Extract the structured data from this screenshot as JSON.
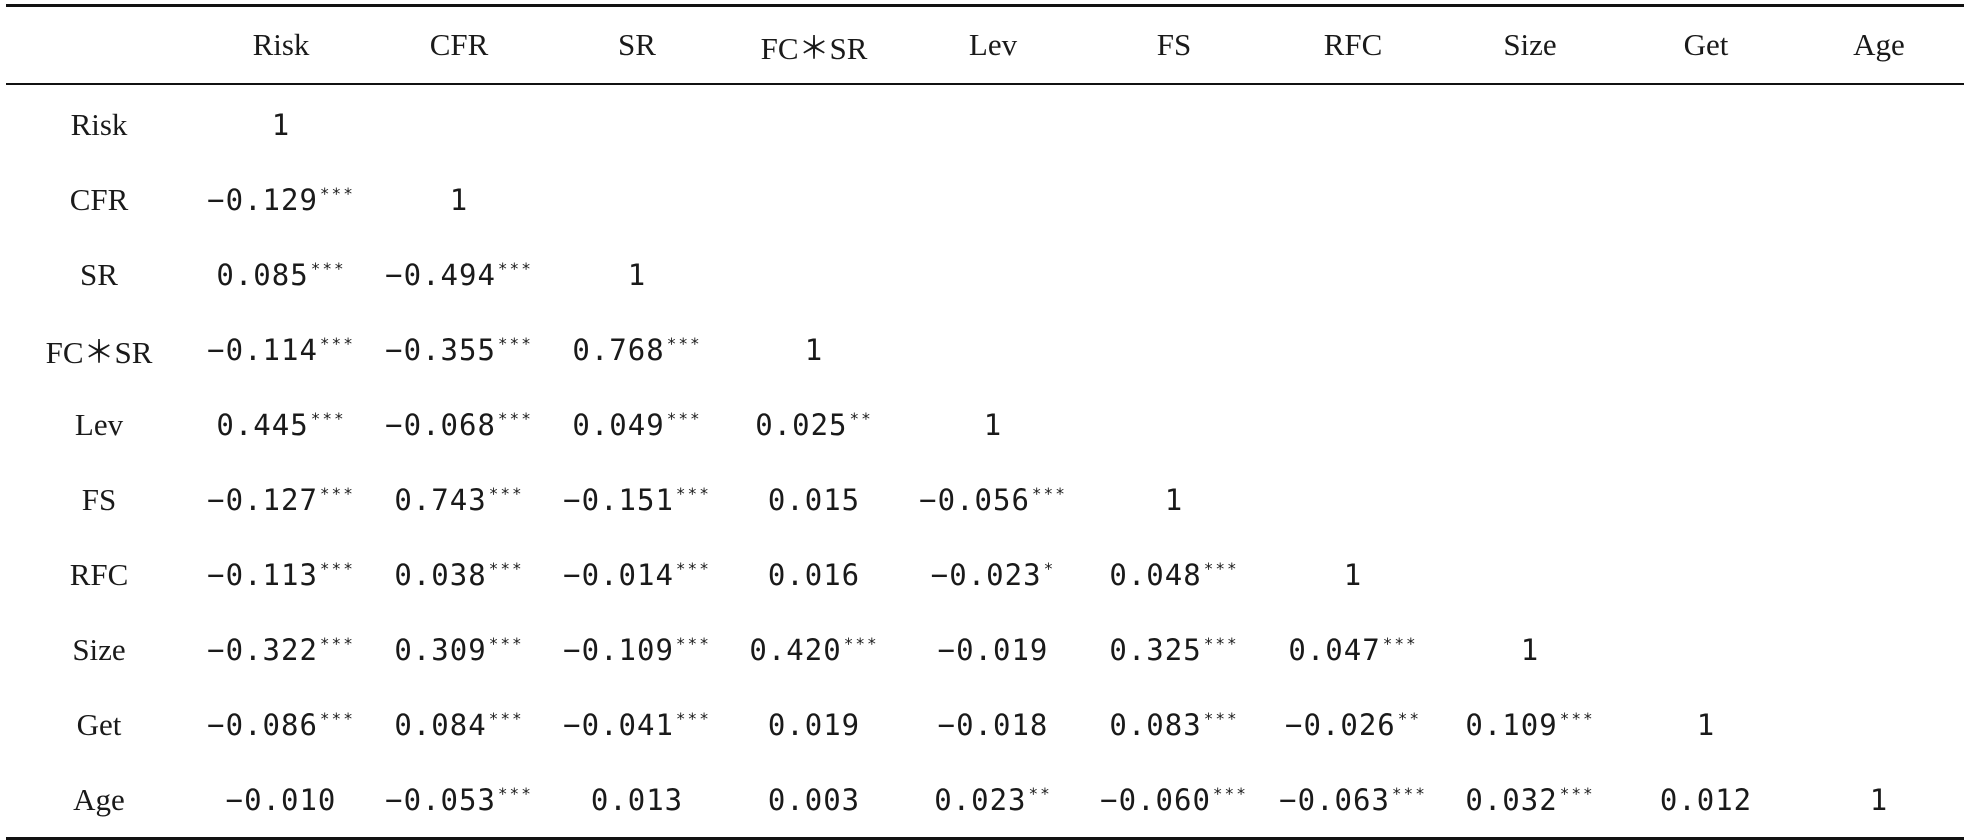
{
  "table": {
    "columns": [
      "",
      "Risk",
      "CFR",
      "SR",
      "FC＊SR",
      "Lev",
      "FS",
      "RFC",
      "Size",
      "Get",
      "Age"
    ],
    "rows": [
      {
        "label": "Risk",
        "cells": [
          {
            "v": "1",
            "s": ""
          },
          {
            "v": "",
            "s": ""
          },
          {
            "v": "",
            "s": ""
          },
          {
            "v": "",
            "s": ""
          },
          {
            "v": "",
            "s": ""
          },
          {
            "v": "",
            "s": ""
          },
          {
            "v": "",
            "s": ""
          },
          {
            "v": "",
            "s": ""
          },
          {
            "v": "",
            "s": ""
          },
          {
            "v": "",
            "s": ""
          }
        ]
      },
      {
        "label": "CFR",
        "cells": [
          {
            "v": "−0.129",
            "s": "***"
          },
          {
            "v": "1",
            "s": ""
          },
          {
            "v": "",
            "s": ""
          },
          {
            "v": "",
            "s": ""
          },
          {
            "v": "",
            "s": ""
          },
          {
            "v": "",
            "s": ""
          },
          {
            "v": "",
            "s": ""
          },
          {
            "v": "",
            "s": ""
          },
          {
            "v": "",
            "s": ""
          },
          {
            "v": "",
            "s": ""
          }
        ]
      },
      {
        "label": "SR",
        "cells": [
          {
            "v": "0.085",
            "s": "***"
          },
          {
            "v": "−0.494",
            "s": "***"
          },
          {
            "v": "1",
            "s": ""
          },
          {
            "v": "",
            "s": ""
          },
          {
            "v": "",
            "s": ""
          },
          {
            "v": "",
            "s": ""
          },
          {
            "v": "",
            "s": ""
          },
          {
            "v": "",
            "s": ""
          },
          {
            "v": "",
            "s": ""
          },
          {
            "v": "",
            "s": ""
          }
        ]
      },
      {
        "label": "FC＊SR",
        "cells": [
          {
            "v": "−0.114",
            "s": "***"
          },
          {
            "v": "−0.355",
            "s": "***"
          },
          {
            "v": "0.768",
            "s": "***"
          },
          {
            "v": "1",
            "s": ""
          },
          {
            "v": "",
            "s": ""
          },
          {
            "v": "",
            "s": ""
          },
          {
            "v": "",
            "s": ""
          },
          {
            "v": "",
            "s": ""
          },
          {
            "v": "",
            "s": ""
          },
          {
            "v": "",
            "s": ""
          }
        ]
      },
      {
        "label": "Lev",
        "cells": [
          {
            "v": "0.445",
            "s": "***"
          },
          {
            "v": "−0.068",
            "s": "***"
          },
          {
            "v": "0.049",
            "s": "***"
          },
          {
            "v": "0.025",
            "s": "**"
          },
          {
            "v": "1",
            "s": ""
          },
          {
            "v": "",
            "s": ""
          },
          {
            "v": "",
            "s": ""
          },
          {
            "v": "",
            "s": ""
          },
          {
            "v": "",
            "s": ""
          },
          {
            "v": "",
            "s": ""
          }
        ]
      },
      {
        "label": "FS",
        "cells": [
          {
            "v": "−0.127",
            "s": "***"
          },
          {
            "v": "0.743",
            "s": "***"
          },
          {
            "v": "−0.151",
            "s": "***"
          },
          {
            "v": "0.015",
            "s": ""
          },
          {
            "v": "−0.056",
            "s": "***"
          },
          {
            "v": "1",
            "s": ""
          },
          {
            "v": "",
            "s": ""
          },
          {
            "v": "",
            "s": ""
          },
          {
            "v": "",
            "s": ""
          },
          {
            "v": "",
            "s": ""
          }
        ]
      },
      {
        "label": "RFC",
        "cells": [
          {
            "v": "−0.113",
            "s": "***"
          },
          {
            "v": "0.038",
            "s": "***"
          },
          {
            "v": "−0.014",
            "s": "***"
          },
          {
            "v": "0.016",
            "s": ""
          },
          {
            "v": "−0.023",
            "s": "*"
          },
          {
            "v": "0.048",
            "s": "***"
          },
          {
            "v": "1",
            "s": ""
          },
          {
            "v": "",
            "s": ""
          },
          {
            "v": "",
            "s": ""
          },
          {
            "v": "",
            "s": ""
          }
        ]
      },
      {
        "label": "Size",
        "cells": [
          {
            "v": "−0.322",
            "s": "***"
          },
          {
            "v": "0.309",
            "s": "***"
          },
          {
            "v": "−0.109",
            "s": "***"
          },
          {
            "v": "0.420",
            "s": "***"
          },
          {
            "v": "−0.019",
            "s": ""
          },
          {
            "v": "0.325",
            "s": "***"
          },
          {
            "v": "0.047",
            "s": "***"
          },
          {
            "v": "1",
            "s": ""
          },
          {
            "v": "",
            "s": ""
          },
          {
            "v": "",
            "s": ""
          }
        ]
      },
      {
        "label": "Get",
        "cells": [
          {
            "v": "−0.086",
            "s": "***"
          },
          {
            "v": "0.084",
            "s": "***"
          },
          {
            "v": "−0.041",
            "s": "***"
          },
          {
            "v": "0.019",
            "s": ""
          },
          {
            "v": "−0.018",
            "s": ""
          },
          {
            "v": "0.083",
            "s": "***"
          },
          {
            "v": "−0.026",
            "s": "**"
          },
          {
            "v": "0.109",
            "s": "***"
          },
          {
            "v": "1",
            "s": ""
          },
          {
            "v": "",
            "s": ""
          }
        ]
      },
      {
        "label": "Age",
        "cells": [
          {
            "v": "−0.010",
            "s": ""
          },
          {
            "v": "−0.053",
            "s": "***"
          },
          {
            "v": "0.013",
            "s": ""
          },
          {
            "v": "0.003",
            "s": ""
          },
          {
            "v": "0.023",
            "s": "**"
          },
          {
            "v": "−0.060",
            "s": "***"
          },
          {
            "v": "−0.063",
            "s": "***"
          },
          {
            "v": "0.032",
            "s": "***"
          },
          {
            "v": "0.012",
            "s": ""
          },
          {
            "v": "1",
            "s": ""
          }
        ]
      }
    ]
  }
}
